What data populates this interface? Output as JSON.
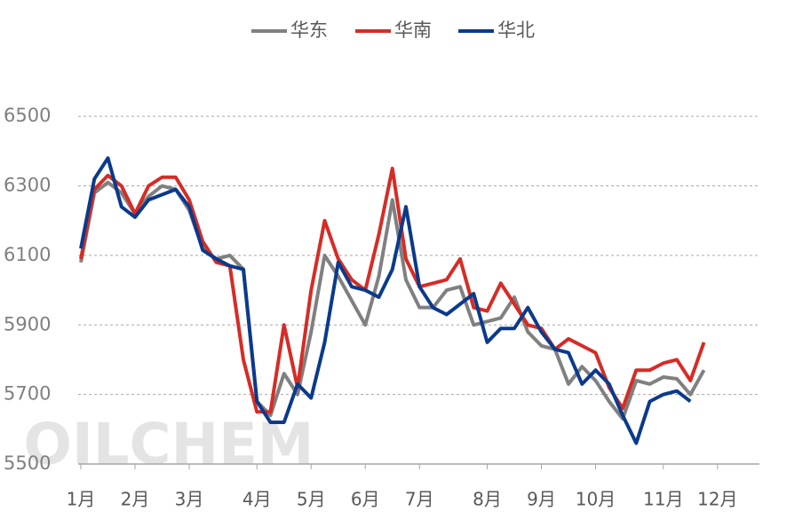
{
  "chart_data": {
    "type": "line",
    "watermark": "OILCHEM",
    "categories": [
      "1月",
      null,
      null,
      null,
      "2月",
      null,
      null,
      null,
      "3月",
      null,
      null,
      null,
      null,
      "4月",
      null,
      null,
      null,
      "5月",
      null,
      null,
      null,
      "6月",
      null,
      null,
      null,
      "7月",
      null,
      null,
      null,
      null,
      "8月",
      null,
      null,
      null,
      "9月",
      null,
      null,
      null,
      "10月",
      null,
      null,
      null,
      null,
      "11月",
      null,
      null,
      null,
      "12月"
    ],
    "series": [
      {
        "name": "华东",
        "color": "#808080",
        "values": [
          6080,
          6280,
          6310,
          6280,
          6220,
          6270,
          6300,
          6290,
          6230,
          6120,
          6090,
          6100,
          6060,
          5680,
          5640,
          5760,
          5700,
          5880,
          6100,
          6040,
          5970,
          5900,
          6040,
          6260,
          6030,
          5950,
          5950,
          6000,
          6010,
          5900,
          5910,
          5920,
          5980,
          5880,
          5840,
          5830,
          5730,
          5780,
          5740,
          5680,
          5630,
          5740,
          5730,
          5750,
          5745,
          5700,
          5770,
          null
        ]
      },
      {
        "name": "华南",
        "color": "#d62c26",
        "values": [
          6090,
          6290,
          6330,
          6300,
          6220,
          6300,
          6325,
          6325,
          6260,
          6140,
          6080,
          6070,
          5800,
          5650,
          5650,
          5900,
          5720,
          6000,
          6200,
          6090,
          6030,
          6000,
          6160,
          6350,
          6090,
          6010,
          6020,
          6030,
          6090,
          5950,
          5940,
          6020,
          5960,
          5900,
          5890,
          5830,
          5860,
          5840,
          5820,
          5720,
          5660,
          5770,
          5770,
          5790,
          5800,
          5740,
          5850,
          null
        ]
      },
      {
        "name": "华北",
        "color": "#0b3a8c",
        "values": [
          6120,
          6320,
          6380,
          6240,
          6210,
          6260,
          6275,
          6290,
          6240,
          6115,
          6090,
          6070,
          6060,
          5680,
          5620,
          5620,
          5730,
          5690,
          5850,
          6080,
          6010,
          6000,
          5980,
          6060,
          6240,
          6010,
          5950,
          5930,
          5960,
          5990,
          5850,
          5890,
          5890,
          5950,
          5880,
          5830,
          5820,
          5730,
          5770,
          5730,
          5640,
          5560,
          5680,
          5700,
          5710,
          5680,
          null,
          null
        ]
      }
    ],
    "ylim": [
      5500,
      6600
    ],
    "yticks": [
      5500,
      5700,
      5900,
      6100,
      6300,
      6500
    ],
    "grid": true,
    "legend": "top"
  }
}
